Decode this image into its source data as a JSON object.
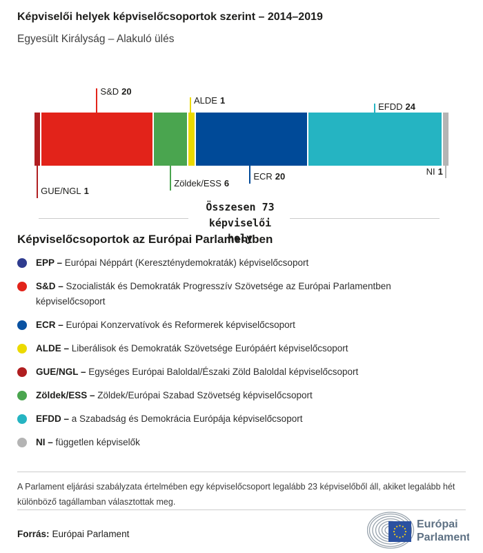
{
  "header": {
    "title": "Képviselői helyek képviselőcsoportok szerint – 2014–2019",
    "subtitle": "Egyesült Királyság – Alakuló ülés"
  },
  "chart_data": {
    "type": "bar",
    "orientation": "horizontal-stacked",
    "title": "Képviselői helyek képviselőcsoportok szerint – 2014–2019",
    "subtitle": "Egyesült Királyság – Alakuló ülés",
    "total_seats": 73,
    "total_label": "Összesen 73\nképviselői\nhely",
    "categories": [
      "GUE/NGL",
      "S&D",
      "Zöldek/ESS",
      "ALDE",
      "ECR",
      "EFDD",
      "NI"
    ],
    "values": [
      1,
      20,
      6,
      1,
      20,
      24,
      1
    ],
    "segments": [
      {
        "name": "GUE/NGL",
        "value": 1,
        "color": "#b01e20",
        "label_side": "below"
      },
      {
        "name": "S&D",
        "value": 20,
        "color": "#e2231a",
        "label_side": "above"
      },
      {
        "name": "Zöldek/ESS",
        "value": 6,
        "color": "#4aa54f",
        "label_side": "below"
      },
      {
        "name": "ALDE",
        "value": 1,
        "color": "#ecda00",
        "label_side": "above"
      },
      {
        "name": "ECR",
        "value": 20,
        "color": "#004a98",
        "label_side": "below"
      },
      {
        "name": "EFDD",
        "value": 24,
        "color": "#25b4c2",
        "label_side": "above"
      },
      {
        "name": "NI",
        "value": 1,
        "color": "#b4b4b4",
        "label_side": "below"
      }
    ]
  },
  "legend": {
    "heading": "Képviselőcsoportok az Európai Parlamentben",
    "items": [
      {
        "code": "EPP –",
        "desc": "Európai Néppárt (Kereszténydemokraták) képviselőcsoport",
        "color": "#2f3c8f"
      },
      {
        "code": "S&D –",
        "desc": "Szocialisták és Demokraták Progresszív Szövetsége az Európai Parlamentben képviselőcsoport",
        "color": "#e2231a"
      },
      {
        "code": "ECR –",
        "desc": "Európai Konzervatívok és Reformerek képviselőcsoport",
        "color": "#0a52a2"
      },
      {
        "code": "ALDE –",
        "desc": "Liberálisok és Demokraták Szövetsége Európáért képviselőcsoport",
        "color": "#ecda00"
      },
      {
        "code": "GUE/NGL –",
        "desc": "Egységes Európai Baloldal/Északi Zöld Baloldal képviselőcsoport",
        "color": "#b01e20"
      },
      {
        "code": "Zöldek/ESS –",
        "desc": "Zöldek/Európai Szabad Szövetség képviselőcsoport",
        "color": "#4aa54f"
      },
      {
        "code": "EFDD –",
        "desc": "a Szabadság és Demokrácia Európája képviselőcsoport",
        "color": "#25b4c2"
      },
      {
        "code": "NI –",
        "desc": "független képviselők",
        "color": "#b4b4b4"
      }
    ]
  },
  "footer": {
    "note": "A Parlament eljárási szabályzata értelmében egy képviselőcsoport legalább 23 képviselőből áll, akiket legalább hét különböző tagállamban választottak meg.",
    "source_label": "Forrás:",
    "source_value": "Európai Parlament",
    "logo": {
      "line1": "Európai",
      "line2": "Parlament"
    }
  }
}
